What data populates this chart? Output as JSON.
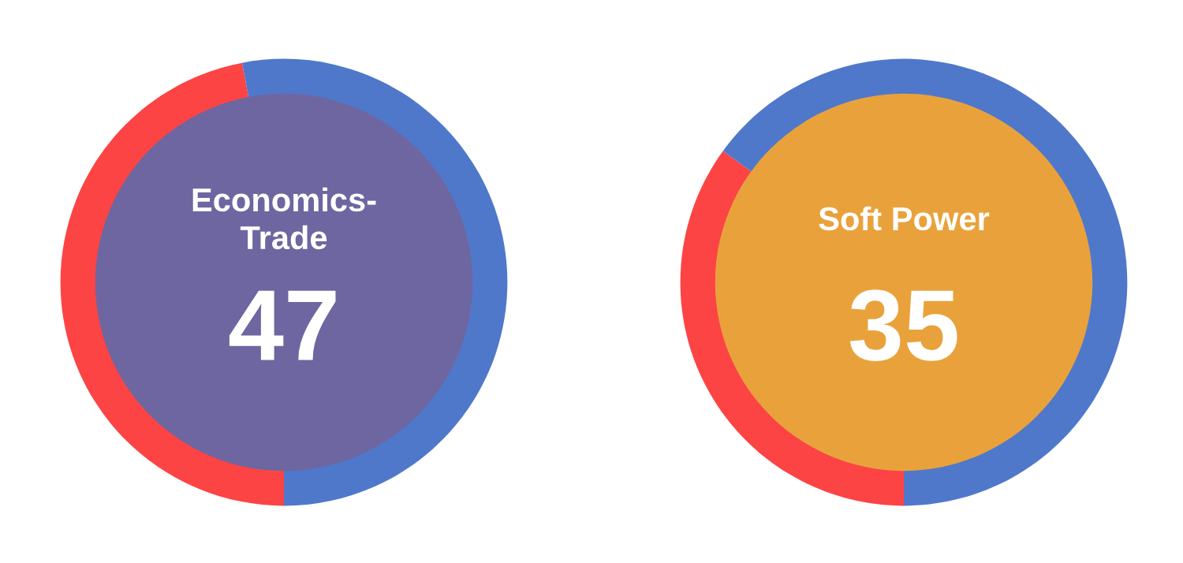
{
  "chart_data": [
    {
      "type": "donut",
      "title": "Economics-\nTrade",
      "categories": [
        null,
        null
      ],
      "values": [
        47,
        53
      ],
      "colors": [
        "#fc4444",
        "#4f78ca"
      ],
      "value_labels": [
        "47",
        null
      ],
      "legend": false
    },
    {
      "type": "donut",
      "title": "Soft Power",
      "categories": [
        null,
        null
      ],
      "values": [
        35,
        65
      ],
      "colors": [
        "#fc4444",
        "#4f78ca"
      ],
      "value_labels": [
        "35",
        null
      ],
      "legend": false
    }
  ]
}
